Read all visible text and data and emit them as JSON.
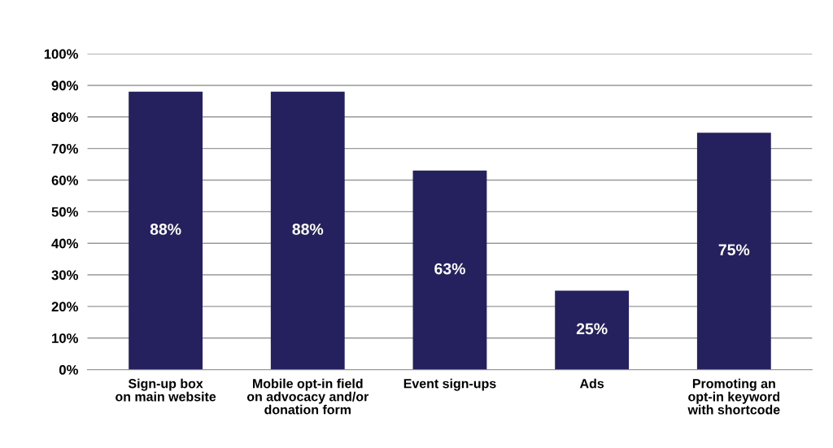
{
  "chart_data": {
    "type": "bar",
    "categories": [
      "Sign-up box\non main website",
      "Mobile opt-in field\non advocacy and/or\ndonation form",
      "Event sign-ups",
      "Ads",
      "Promoting an\nopt-in keyword\nwith shortcode"
    ],
    "values": [
      88,
      88,
      63,
      25,
      75
    ],
    "color": "#25215e",
    "value_labels": [
      "88%",
      "88%",
      "63%",
      "25%",
      "75%"
    ],
    "ylim": [
      0,
      100
    ],
    "yticks": [
      {
        "value": 0,
        "label": "0%"
      },
      {
        "value": 10,
        "label": "10%"
      },
      {
        "value": 20,
        "label": "20%"
      },
      {
        "value": 30,
        "label": "30%"
      },
      {
        "value": 40,
        "label": "40%"
      },
      {
        "value": 50,
        "label": "50%"
      },
      {
        "value": 60,
        "label": "60%"
      },
      {
        "value": 70,
        "label": "70%"
      },
      {
        "value": 80,
        "label": "80%"
      },
      {
        "value": 90,
        "label": "90%"
      },
      {
        "value": 100,
        "label": "100%"
      }
    ],
    "grid": "y"
  }
}
